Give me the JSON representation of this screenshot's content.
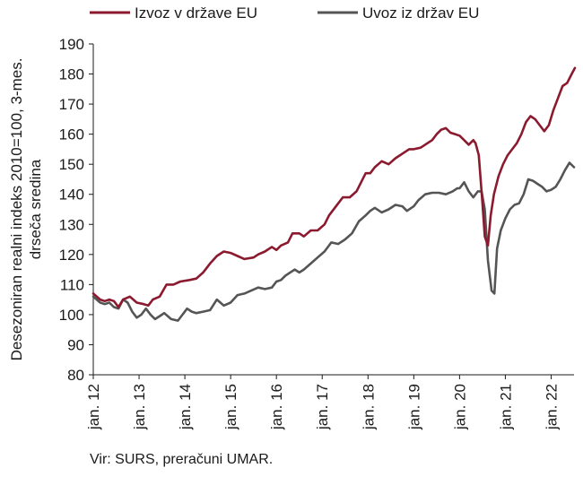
{
  "chart_data": {
    "type": "line",
    "title": "",
    "ylabel_lines": [
      "Desezoniran realni indeks 2010=100, 3-mes.",
      "drseča sredina"
    ],
    "ylim": [
      80,
      190
    ],
    "yticks": [
      80,
      90,
      100,
      110,
      120,
      130,
      140,
      150,
      160,
      170,
      180,
      190
    ],
    "xlim": [
      2012.0,
      2022.5
    ],
    "xticks": [
      {
        "x": 2012,
        "label": "jan. 12"
      },
      {
        "x": 2013,
        "label": "jan. 13"
      },
      {
        "x": 2014,
        "label": "jan. 14"
      },
      {
        "x": 2015,
        "label": "jan. 15"
      },
      {
        "x": 2016,
        "label": "jan. 16"
      },
      {
        "x": 2017,
        "label": "jan. 17"
      },
      {
        "x": 2018,
        "label": "jan. 18"
      },
      {
        "x": 2019,
        "label": "jan. 19"
      },
      {
        "x": 2020,
        "label": "jan. 20"
      },
      {
        "x": 2021,
        "label": "jan. 21"
      },
      {
        "x": 2022,
        "label": "jan. 22"
      }
    ],
    "grid": false,
    "legend": "top",
    "series": [
      {
        "name": "Izvoz v države EU",
        "color": "#8b1a2f",
        "points": [
          [
            2012.0,
            107
          ],
          [
            2012.15,
            105
          ],
          [
            2012.25,
            104.5
          ],
          [
            2012.35,
            105
          ],
          [
            2012.45,
            104.5
          ],
          [
            2012.55,
            102.5
          ],
          [
            2012.65,
            105
          ],
          [
            2012.8,
            106
          ],
          [
            2012.95,
            104
          ],
          [
            2013.1,
            103.5
          ],
          [
            2013.2,
            103
          ],
          [
            2013.3,
            105
          ],
          [
            2013.45,
            106
          ],
          [
            2013.6,
            110
          ],
          [
            2013.75,
            110
          ],
          [
            2013.9,
            111
          ],
          [
            2014.1,
            111.5
          ],
          [
            2014.25,
            112
          ],
          [
            2014.4,
            114
          ],
          [
            2014.55,
            117
          ],
          [
            2014.7,
            119.5
          ],
          [
            2014.85,
            121
          ],
          [
            2015.0,
            120.5
          ],
          [
            2015.15,
            119.5
          ],
          [
            2015.3,
            118.5
          ],
          [
            2015.5,
            119
          ],
          [
            2015.6,
            120
          ],
          [
            2015.75,
            121
          ],
          [
            2015.9,
            122.5
          ],
          [
            2016.0,
            121.5
          ],
          [
            2016.1,
            123
          ],
          [
            2016.25,
            124
          ],
          [
            2016.35,
            127
          ],
          [
            2016.5,
            127
          ],
          [
            2016.6,
            126
          ],
          [
            2016.75,
            128
          ],
          [
            2016.9,
            128
          ],
          [
            2017.05,
            130
          ],
          [
            2017.15,
            133
          ],
          [
            2017.3,
            136
          ],
          [
            2017.45,
            139
          ],
          [
            2017.6,
            139
          ],
          [
            2017.75,
            141
          ],
          [
            2017.85,
            144
          ],
          [
            2017.95,
            147
          ],
          [
            2018.05,
            147
          ],
          [
            2018.15,
            149
          ],
          [
            2018.3,
            151
          ],
          [
            2018.45,
            150
          ],
          [
            2018.6,
            152
          ],
          [
            2018.75,
            153.5
          ],
          [
            2018.9,
            155
          ],
          [
            2019.0,
            155
          ],
          [
            2019.15,
            155.5
          ],
          [
            2019.3,
            157
          ],
          [
            2019.4,
            158
          ],
          [
            2019.5,
            160
          ],
          [
            2019.6,
            161.5
          ],
          [
            2019.7,
            162
          ],
          [
            2019.8,
            160.5
          ],
          [
            2019.9,
            160
          ],
          [
            2020.0,
            159.5
          ],
          [
            2020.1,
            158
          ],
          [
            2020.2,
            156.5
          ],
          [
            2020.3,
            158
          ],
          [
            2020.35,
            157
          ],
          [
            2020.42,
            153
          ],
          [
            2020.5,
            137
          ],
          [
            2020.55,
            126
          ],
          [
            2020.62,
            123
          ],
          [
            2020.68,
            133
          ],
          [
            2020.75,
            140
          ],
          [
            2020.85,
            146
          ],
          [
            2020.95,
            150
          ],
          [
            2021.05,
            153
          ],
          [
            2021.15,
            155
          ],
          [
            2021.25,
            157
          ],
          [
            2021.35,
            160
          ],
          [
            2021.45,
            164
          ],
          [
            2021.55,
            166
          ],
          [
            2021.65,
            165
          ],
          [
            2021.75,
            163
          ],
          [
            2021.85,
            161
          ],
          [
            2021.95,
            163
          ],
          [
            2022.05,
            168
          ],
          [
            2022.15,
            172
          ],
          [
            2022.25,
            176
          ],
          [
            2022.35,
            177
          ],
          [
            2022.45,
            180
          ],
          [
            2022.52,
            182
          ]
        ]
      },
      {
        "name": "Uvoz iz držav EU",
        "color": "#555555",
        "points": [
          [
            2012.0,
            106
          ],
          [
            2012.15,
            104
          ],
          [
            2012.25,
            103.5
          ],
          [
            2012.35,
            104
          ],
          [
            2012.45,
            102.5
          ],
          [
            2012.55,
            102
          ],
          [
            2012.65,
            105
          ],
          [
            2012.75,
            104
          ],
          [
            2012.85,
            101
          ],
          [
            2012.95,
            99
          ],
          [
            2013.05,
            100
          ],
          [
            2013.15,
            102
          ],
          [
            2013.25,
            100
          ],
          [
            2013.35,
            98.5
          ],
          [
            2013.45,
            99.5
          ],
          [
            2013.55,
            100.5
          ],
          [
            2013.7,
            98.5
          ],
          [
            2013.85,
            98
          ],
          [
            2013.95,
            100
          ],
          [
            2014.05,
            102
          ],
          [
            2014.15,
            101
          ],
          [
            2014.25,
            100.5
          ],
          [
            2014.4,
            101
          ],
          [
            2014.55,
            101.5
          ],
          [
            2014.7,
            105
          ],
          [
            2014.85,
            103
          ],
          [
            2015.0,
            104
          ],
          [
            2015.15,
            106.5
          ],
          [
            2015.3,
            107
          ],
          [
            2015.45,
            108
          ],
          [
            2015.6,
            109
          ],
          [
            2015.75,
            108.5
          ],
          [
            2015.9,
            109
          ],
          [
            2016.0,
            111
          ],
          [
            2016.1,
            111.5
          ],
          [
            2016.2,
            113
          ],
          [
            2016.3,
            114
          ],
          [
            2016.4,
            115
          ],
          [
            2016.5,
            114
          ],
          [
            2016.6,
            115
          ],
          [
            2016.75,
            117
          ],
          [
            2016.9,
            119
          ],
          [
            2017.05,
            121
          ],
          [
            2017.2,
            124
          ],
          [
            2017.35,
            123.5
          ],
          [
            2017.5,
            125
          ],
          [
            2017.65,
            127
          ],
          [
            2017.8,
            131
          ],
          [
            2017.95,
            133
          ],
          [
            2018.05,
            134.5
          ],
          [
            2018.15,
            135.5
          ],
          [
            2018.3,
            134
          ],
          [
            2018.45,
            135
          ],
          [
            2018.6,
            136.5
          ],
          [
            2018.75,
            136
          ],
          [
            2018.85,
            134.5
          ],
          [
            2019.0,
            136
          ],
          [
            2019.1,
            138
          ],
          [
            2019.25,
            140
          ],
          [
            2019.4,
            140.5
          ],
          [
            2019.55,
            140.5
          ],
          [
            2019.7,
            140
          ],
          [
            2019.85,
            141
          ],
          [
            2019.95,
            142
          ],
          [
            2020.0,
            142
          ],
          [
            2020.1,
            144
          ],
          [
            2020.2,
            141
          ],
          [
            2020.3,
            139
          ],
          [
            2020.4,
            141
          ],
          [
            2020.48,
            141
          ],
          [
            2020.55,
            135
          ],
          [
            2020.62,
            118
          ],
          [
            2020.7,
            108
          ],
          [
            2020.76,
            107
          ],
          [
            2020.82,
            122
          ],
          [
            2020.9,
            128
          ],
          [
            2021.0,
            132
          ],
          [
            2021.1,
            135
          ],
          [
            2021.2,
            136.5
          ],
          [
            2021.3,
            137
          ],
          [
            2021.4,
            140
          ],
          [
            2021.5,
            145
          ],
          [
            2021.6,
            144.5
          ],
          [
            2021.7,
            143.5
          ],
          [
            2021.8,
            142.5
          ],
          [
            2021.9,
            141
          ],
          [
            2022.0,
            141.5
          ],
          [
            2022.1,
            142.5
          ],
          [
            2022.2,
            145
          ],
          [
            2022.3,
            148
          ],
          [
            2022.4,
            150.5
          ],
          [
            2022.5,
            149
          ]
        ]
      }
    ]
  },
  "source": "Vir: SURS, preračuni UMAR."
}
